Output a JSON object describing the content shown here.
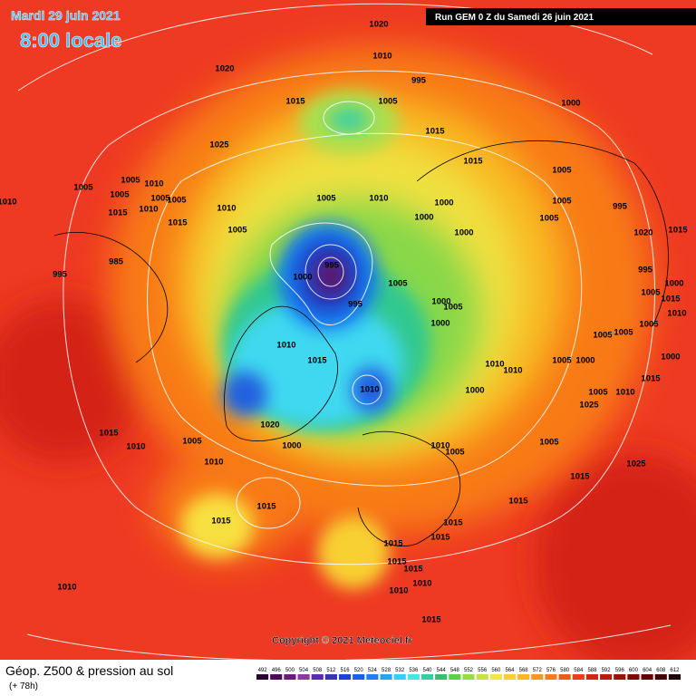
{
  "header": {
    "valid_date": "Mardi 29 juin 2021",
    "valid_time": "8:00 locale",
    "run_info": "Run GEM 0 Z du Samedi 26 juin 2021"
  },
  "pressure_labels": [
    "1020",
    "1010",
    "995",
    "1020",
    "1015",
    "1005",
    "1000",
    "1015",
    "1025",
    "1015",
    "1005",
    "1005",
    "1005",
    "1010",
    "1005",
    "1005",
    "1005",
    "1010",
    "1015",
    "1015",
    "1010",
    "1005",
    "1010",
    "1000",
    "995",
    "1005",
    "1005",
    "1010",
    "1000",
    "1000",
    "1005",
    "1020",
    "1015",
    "985",
    "995",
    "995",
    "1000",
    "995",
    "1000",
    "1005",
    "1015",
    "1010",
    "1005",
    "1000",
    "1005",
    "995",
    "1000",
    "1005",
    "1005",
    "1005",
    "1010",
    "1015",
    "1010",
    "1010",
    "1005",
    "1000",
    "1000",
    "1015",
    "1010",
    "1005",
    "1010",
    "1000",
    "1025",
    "1020",
    "1015",
    "1010",
    "1005",
    "1000",
    "1010",
    "1005",
    "1005",
    "1010",
    "1025",
    "1015",
    "1015",
    "1015",
    "1015",
    "1015",
    "1015",
    "1015",
    "1015",
    "1015",
    "1010",
    "1010",
    "1010",
    "1015"
  ],
  "copyright": "Copyright © 2021 Meteociel.fr",
  "footer": {
    "title": "Géop. Z500 & pression au sol",
    "forecast_hour": "(+ 78h)"
  },
  "legend": {
    "values": [
      492,
      496,
      500,
      504,
      508,
      512,
      516,
      520,
      524,
      528,
      532,
      536,
      540,
      544,
      548,
      552,
      556,
      560,
      564,
      568,
      572,
      576,
      580,
      584,
      588,
      592,
      596,
      600,
      604,
      608,
      612
    ],
    "colors": [
      "#2a0030",
      "#4a0a5a",
      "#6a1a7a",
      "#8a3aa0",
      "#5a2ab0",
      "#3a30c0",
      "#2040d8",
      "#1860f0",
      "#1880f8",
      "#20a8f8",
      "#30d0f8",
      "#40e8e0",
      "#30d0a0",
      "#30c070",
      "#60d040",
      "#98dc40",
      "#c8e040",
      "#f0e840",
      "#f8d030",
      "#f8b820",
      "#f89818",
      "#f87a18",
      "#f05a18",
      "#ee3a22",
      "#d82418",
      "#c01810",
      "#a01008",
      "#800808",
      "#600404",
      "#400202",
      "#200000"
    ]
  }
}
